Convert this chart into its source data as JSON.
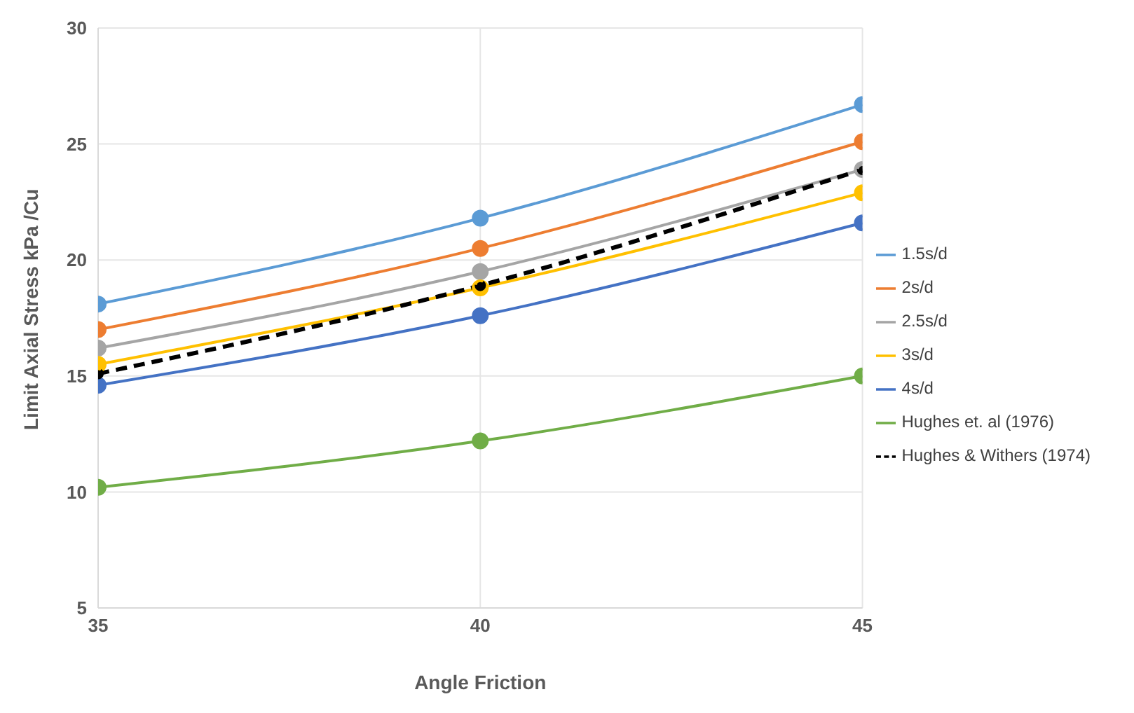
{
  "chart_data": {
    "type": "line",
    "xlabel": "Angle Friction",
    "ylabel": "Limit Axial Stress kPa /Cu",
    "x": [
      35,
      40,
      45
    ],
    "xlim": [
      35,
      45
    ],
    "xticks": [
      35,
      40,
      45
    ],
    "ylim": [
      5,
      30
    ],
    "yticks": [
      5,
      10,
      15,
      20,
      25,
      30
    ],
    "grid": true,
    "legend": "right",
    "marker": "circle",
    "series": [
      {
        "name": "1.5s/d",
        "color": "#5b9bd5",
        "values": [
          18.1,
          21.8,
          26.7
        ]
      },
      {
        "name": "2s/d",
        "color": "#ed7d31",
        "values": [
          17.0,
          20.5,
          25.1
        ]
      },
      {
        "name": "2.5s/d",
        "color": "#a5a5a5",
        "values": [
          16.2,
          19.5,
          23.9
        ]
      },
      {
        "name": "3s/d",
        "color": "#ffc000",
        "values": [
          15.5,
          18.8,
          22.9
        ]
      },
      {
        "name": "4s/d",
        "color": "#4472c4",
        "values": [
          14.6,
          17.6,
          21.6
        ]
      },
      {
        "name": "Hughes et. al (1976)",
        "color": "#70ad47",
        "values": [
          10.2,
          12.2,
          15.0
        ]
      },
      {
        "name": "Hughes & Withers (1974)",
        "color": "#000000",
        "line_style": "dashed",
        "values": [
          15.1,
          18.9,
          23.9
        ]
      }
    ]
  }
}
